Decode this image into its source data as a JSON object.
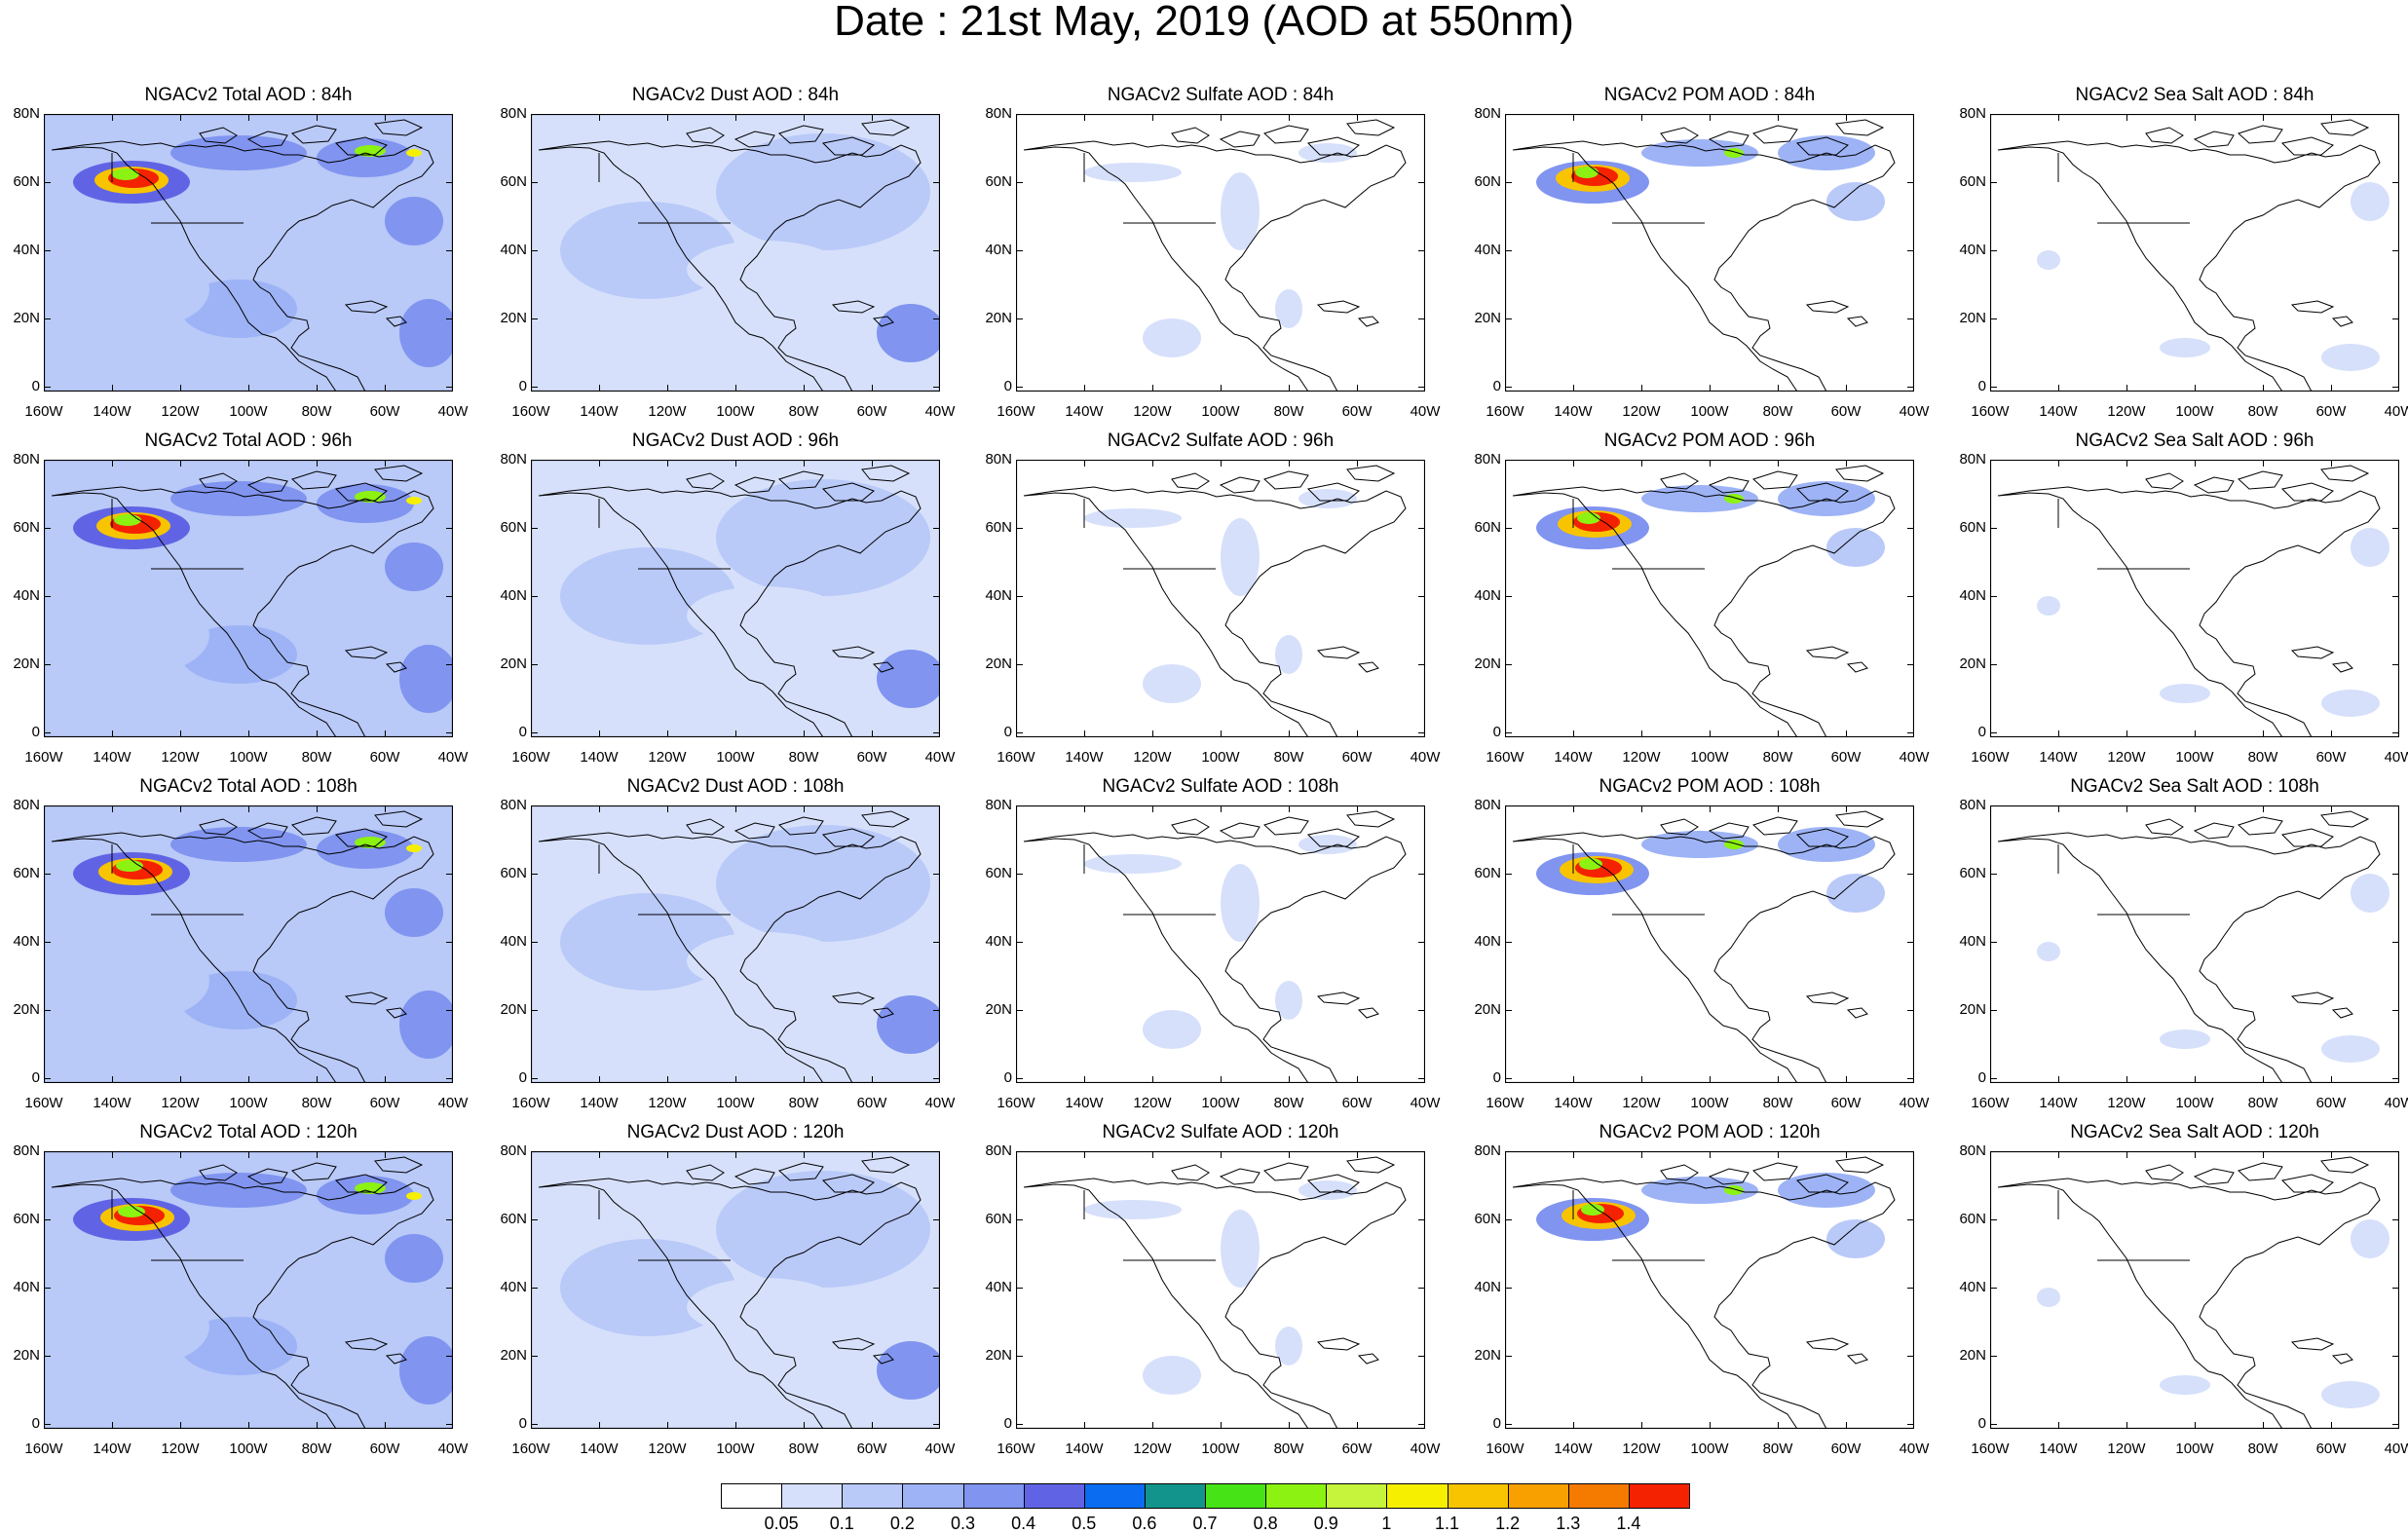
{
  "title": "Date : 21st May, 2019 (AOD at 550nm)",
  "lat_labels": [
    "80N",
    "60N",
    "40N",
    "20N",
    "0"
  ],
  "lon_labels": [
    "160W",
    "140W",
    "120W",
    "100W",
    "80W",
    "60W",
    "40W"
  ],
  "panels": [
    {
      "title": "NGACv2 Total AOD : 84h",
      "species": "total",
      "hour": 84
    },
    {
      "title": "NGACv2 Dust AOD : 84h",
      "species": "dust",
      "hour": 84
    },
    {
      "title": "NGACv2 Sulfate AOD : 84h",
      "species": "sulfate",
      "hour": 84
    },
    {
      "title": "NGACv2 POM AOD : 84h",
      "species": "pom",
      "hour": 84
    },
    {
      "title": "NGACv2 Sea Salt AOD : 84h",
      "species": "seasalt",
      "hour": 84
    },
    {
      "title": "NGACv2 Total AOD : 96h",
      "species": "total",
      "hour": 96
    },
    {
      "title": "NGACv2 Dust AOD : 96h",
      "species": "dust",
      "hour": 96
    },
    {
      "title": "NGACv2 Sulfate AOD : 96h",
      "species": "sulfate",
      "hour": 96
    },
    {
      "title": "NGACv2 POM AOD : 96h",
      "species": "pom",
      "hour": 96
    },
    {
      "title": "NGACv2 Sea Salt AOD : 96h",
      "species": "seasalt",
      "hour": 96
    },
    {
      "title": "NGACv2 Total AOD : 108h",
      "species": "total",
      "hour": 108
    },
    {
      "title": "NGACv2 Dust AOD : 108h",
      "species": "dust",
      "hour": 108
    },
    {
      "title": "NGACv2 Sulfate AOD : 108h",
      "species": "sulfate",
      "hour": 108
    },
    {
      "title": "NGACv2 POM AOD : 108h",
      "species": "pom",
      "hour": 108
    },
    {
      "title": "NGACv2 Sea Salt AOD : 108h",
      "species": "seasalt",
      "hour": 108
    },
    {
      "title": "NGACv2 Total AOD : 120h",
      "species": "total",
      "hour": 120
    },
    {
      "title": "NGACv2 Dust AOD : 120h",
      "species": "dust",
      "hour": 120
    },
    {
      "title": "NGACv2 Sulfate AOD : 120h",
      "species": "sulfate",
      "hour": 120
    },
    {
      "title": "NGACv2 POM AOD : 120h",
      "species": "pom",
      "hour": 120
    },
    {
      "title": "NGACv2 Sea Salt  AOD : 120h",
      "species": "seasalt",
      "hour": 120
    }
  ],
  "colorbar": {
    "labels": [
      "0.05",
      "0.1",
      "0.2",
      "0.3",
      "0.4",
      "0.5",
      "0.6",
      "0.7",
      "0.8",
      "0.9",
      "1",
      "1.1",
      "1.2",
      "1.3",
      "1.4"
    ],
    "colors": [
      "#ffffff",
      "#d6e0fb",
      "#b9c9f8",
      "#9db3f6",
      "#8094f0",
      "#6064e4",
      "#0a6cf0",
      "#12948c",
      "#46e416",
      "#8cf212",
      "#c6f43c",
      "#f6f000",
      "#f8c400",
      "#f8a000",
      "#f47a00",
      "#f42200"
    ]
  }
}
